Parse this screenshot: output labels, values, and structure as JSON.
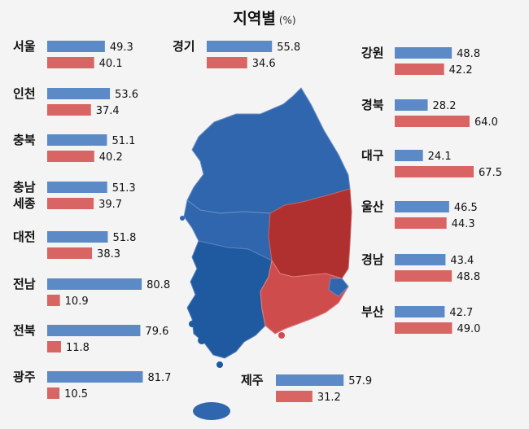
{
  "title": "지역별",
  "unit": "(%)",
  "colors": {
    "blue_bar": "#5b8ac6",
    "red_bar": "#d96464",
    "map_blue": "#2f66ad",
    "map_blue_dark": "#1f5aa1",
    "map_red": "#b02f2f",
    "map_red_light": "#cf4c4c"
  },
  "chart_data": {
    "type": "bar",
    "orientation": "horizontal",
    "title": "지역별",
    "unit": "%",
    "xlim": [
      0,
      100
    ],
    "categories": [
      "서울",
      "인천",
      "충북",
      "충남\n세종",
      "대전",
      "전남",
      "전북",
      "광주",
      "경기",
      "제주",
      "강원",
      "경북",
      "대구",
      "울산",
      "경남",
      "부산"
    ],
    "series": [
      {
        "color": "#5b8ac6",
        "values": [
          49.3,
          53.6,
          51.1,
          51.3,
          51.8,
          80.8,
          79.6,
          81.7,
          55.8,
          57.9,
          48.8,
          28.2,
          24.1,
          46.5,
          43.4,
          42.7
        ]
      },
      {
        "color": "#d96464",
        "values": [
          40.1,
          37.4,
          40.2,
          39.7,
          38.3,
          10.9,
          11.8,
          10.5,
          34.6,
          31.2,
          42.2,
          64.0,
          67.5,
          44.3,
          48.8,
          49.0
        ]
      }
    ]
  }
}
